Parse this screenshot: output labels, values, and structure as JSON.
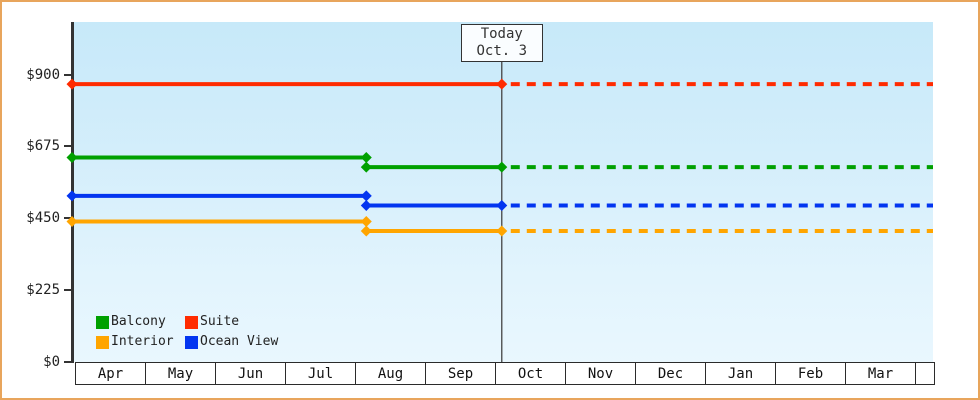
{
  "frame": {
    "border_color": "#E8A55C",
    "plot_background_top": "#C7E9F9",
    "plot_background_bottom": "#E9F7FE",
    "axis_color": "#333333"
  },
  "chart_data": {
    "type": "line",
    "title": "",
    "xlabel": "",
    "ylabel": "",
    "x_axis": {
      "months": [
        "Apr",
        "May",
        "Jun",
        "Jul",
        "Aug",
        "Sep",
        "Oct",
        "Nov",
        "Dec",
        "Jan",
        "Feb",
        "Mar"
      ]
    },
    "y_axis": {
      "ticks": [
        {
          "label": "$900",
          "value": 900
        },
        {
          "label": "$675",
          "value": 675
        },
        {
          "label": "$450",
          "value": 450
        },
        {
          "label": "$225",
          "value": 225
        },
        {
          "label": "$0",
          "value": 0
        }
      ],
      "min": 0,
      "max": 1060,
      "grid": false
    },
    "today_marker": {
      "line1": "Today",
      "line2": "Oct. 3",
      "month": "Oct",
      "day": 3
    },
    "series": [
      {
        "name": "Suite",
        "color": "#FF2B00",
        "segments": [
          {
            "from": {
              "month": "Apr",
              "day": 1
            },
            "to": {
              "month": "Oct",
              "day": 3
            },
            "price": 870
          }
        ],
        "projected": {
          "price": 870,
          "style": "dashed"
        }
      },
      {
        "name": "Balcony",
        "color": "#00A000",
        "segments": [
          {
            "from": {
              "month": "Apr",
              "day": 1
            },
            "to": {
              "month": "Aug",
              "day": 5
            },
            "price": 640
          },
          {
            "from": {
              "month": "Aug",
              "day": 5
            },
            "to": {
              "month": "Oct",
              "day": 3
            },
            "price": 610
          }
        ],
        "projected": {
          "price": 610,
          "style": "dashed"
        }
      },
      {
        "name": "Ocean View",
        "color": "#0335F0",
        "segments": [
          {
            "from": {
              "month": "Apr",
              "day": 1
            },
            "to": {
              "month": "Aug",
              "day": 5
            },
            "price": 520
          },
          {
            "from": {
              "month": "Aug",
              "day": 5
            },
            "to": {
              "month": "Oct",
              "day": 3
            },
            "price": 490
          }
        ],
        "projected": {
          "price": 490,
          "style": "dashed"
        }
      },
      {
        "name": "Interior",
        "color": "#FFA500",
        "segments": [
          {
            "from": {
              "month": "Apr",
              "day": 1
            },
            "to": {
              "month": "Aug",
              "day": 5
            },
            "price": 440
          },
          {
            "from": {
              "month": "Aug",
              "day": 5
            },
            "to": {
              "month": "Oct",
              "day": 3
            },
            "price": 410
          }
        ],
        "projected": {
          "price": 410,
          "style": "dashed"
        }
      }
    ],
    "legend": {
      "position": "bottom-left-inside-plot",
      "items": [
        {
          "label": "Balcony",
          "color": "#00A000"
        },
        {
          "label": "Suite",
          "color": "#FF2B00"
        },
        {
          "label": "Interior",
          "color": "#FFA500"
        },
        {
          "label": "Ocean View",
          "color": "#0335F0"
        }
      ]
    }
  }
}
